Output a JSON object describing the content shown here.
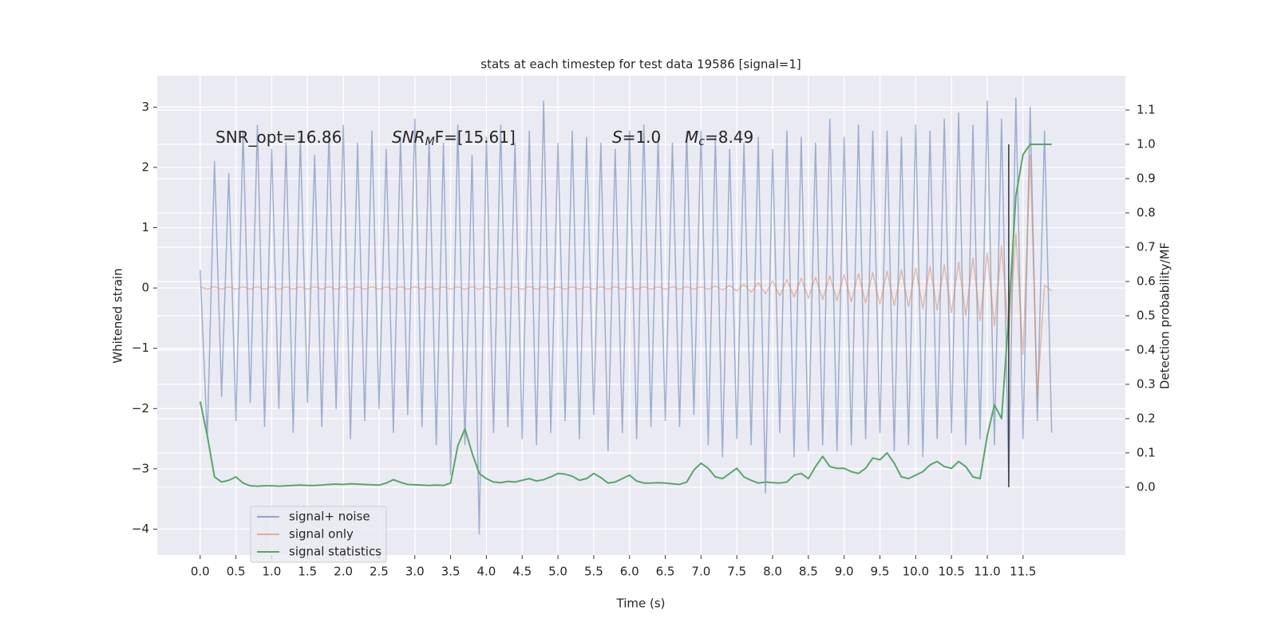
{
  "chart_data": {
    "type": "line",
    "title": "stats at each timestep for test data 19586 [signal=1]",
    "xlabel": "Time (s)",
    "ylabel": "Whitened strain",
    "y2label": "Detection probability/MF",
    "xlim": [
      -0.6,
      12.93
    ],
    "ylim": [
      -4.43,
      3.52
    ],
    "y2lim": [
      -0.198,
      1.2
    ],
    "xticks": [
      {
        "value": 0,
        "label": "0.0"
      },
      0.5,
      {
        "value": 1,
        "label": "1.0"
      },
      1.5,
      {
        "value": 2,
        "label": "2.0"
      },
      2.5,
      {
        "value": 3,
        "label": "3.0"
      },
      3.5,
      {
        "value": 4,
        "label": "4.0"
      },
      4.5,
      {
        "value": 5,
        "label": "5.0"
      },
      5.5,
      {
        "value": 6,
        "label": "6.0"
      },
      6.5,
      {
        "value": 7,
        "label": "7.0"
      },
      7.5,
      {
        "value": 8,
        "label": "8.0"
      },
      8.5,
      {
        "value": 9,
        "label": "9.0"
      },
      9.5,
      {
        "value": 10,
        "label": "10.0"
      },
      10.5,
      {
        "value": 11,
        "label": "11.0"
      },
      11.5
    ],
    "yticks": [
      {
        "value": -4,
        "label": "−4"
      },
      {
        "value": -3,
        "label": "−3"
      },
      {
        "value": -2,
        "label": "−2"
      },
      {
        "value": -1,
        "label": "−1"
      },
      0,
      1,
      2,
      3
    ],
    "y2ticks": [
      {
        "value": 0,
        "label": "0.0"
      },
      0.1,
      0.2,
      0.3,
      0.4,
      0.5,
      0.6,
      0.7,
      0.8,
      0.9,
      {
        "value": 1,
        "label": "1.0"
      },
      1.1
    ],
    "grid": true,
    "legend": "lower left",
    "annotations": [
      {
        "text": "SNR_opt=16.86"
      },
      {
        "italic": "SNR",
        "sub": "M",
        "text": "F=[15.61]"
      },
      {
        "italic": "S",
        "text": "=1.0"
      },
      {
        "italic": "M",
        "sub": "c",
        "text": "=8.49"
      }
    ],
    "vline": {
      "x": 11.3,
      "y2": [
        0,
        1
      ],
      "color": "#333333"
    },
    "x": [
      0,
      0.1,
      0.2,
      0.3,
      0.4,
      0.5,
      0.6,
      0.7,
      0.8,
      0.9,
      1,
      1.1,
      1.2,
      1.3,
      1.4,
      1.5,
      1.6,
      1.7,
      1.8,
      1.9,
      2,
      2.1,
      2.2,
      2.3,
      2.4,
      2.5,
      2.6,
      2.7,
      2.8,
      2.9,
      3,
      3.1,
      3.2,
      3.3,
      3.4,
      3.5,
      3.6,
      3.7,
      3.8,
      3.9,
      4,
      4.1,
      4.2,
      4.3,
      4.4,
      4.5,
      4.6,
      4.7,
      4.8,
      4.9,
      5,
      5.1,
      5.2,
      5.3,
      5.4,
      5.5,
      5.6,
      5.7,
      5.8,
      5.9,
      6,
      6.1,
      6.2,
      6.3,
      6.4,
      6.5,
      6.6,
      6.7,
      6.8,
      6.9,
      7,
      7.1,
      7.2,
      7.3,
      7.4,
      7.5,
      7.6,
      7.7,
      7.8,
      7.9,
      8,
      8.1,
      8.2,
      8.3,
      8.4,
      8.5,
      8.6,
      8.7,
      8.8,
      8.9,
      9,
      9.1,
      9.2,
      9.3,
      9.4,
      9.5,
      9.6,
      9.7,
      9.8,
      9.9,
      10,
      10.1,
      10.2,
      10.3,
      10.4,
      10.5,
      10.6,
      10.7,
      10.8,
      10.9,
      11,
      11.1,
      11.2,
      11.3,
      11.4,
      11.5,
      11.6,
      11.7,
      11.8,
      11.9
    ],
    "series": [
      {
        "name": "signal+ noise",
        "color": "#4c72b0",
        "values": [
          0.3,
          -2.5,
          2.1,
          -1.8,
          1.9,
          -2.2,
          2.6,
          -1.9,
          2.7,
          -2.3,
          2.3,
          -2.0,
          2.4,
          -2.4,
          2.5,
          -1.9,
          2.2,
          -2.3,
          2.6,
          -2.0,
          2.7,
          -2.5,
          2.4,
          -2.2,
          2.6,
          -2.0,
          2.3,
          -2.4,
          2.5,
          -2.1,
          2.8,
          -2.3,
          2.5,
          -2.6,
          2.4,
          -3.1,
          2.7,
          -2.6,
          2.2,
          -4.08,
          2.5,
          -2.4,
          2.7,
          -2.3,
          2.4,
          -2.5,
          2.6,
          -2.6,
          3.1,
          -2.4,
          2.4,
          -2.2,
          2.6,
          -2.5,
          2.5,
          -2.1,
          2.4,
          -2.7,
          2.3,
          -2.4,
          2.6,
          -2.5,
          2.7,
          -2.3,
          2.5,
          -2.2,
          2.4,
          -2.3,
          2.6,
          -2.1,
          2.6,
          -2.6,
          2.5,
          -2.8,
          2.3,
          -2.5,
          2.4,
          -2.6,
          2.5,
          -3.4,
          2.3,
          -2.4,
          2.6,
          -2.8,
          2.5,
          -2.7,
          2.4,
          -2.6,
          2.8,
          -2.7,
          2.5,
          -2.6,
          2.7,
          -2.5,
          2.6,
          -2.4,
          2.6,
          -2.7,
          2.5,
          -2.6,
          2.7,
          -2.8,
          2.6,
          -2.5,
          2.8,
          -2.4,
          2.9,
          -2.6,
          2.7,
          -2.5,
          3.1,
          -2.6,
          2.8,
          -3.2,
          3.15,
          -2.5,
          3.0,
          -2.2,
          2.6,
          -2.4
        ]
      },
      {
        "name": "signal only",
        "color": "#dd8452",
        "values": [
          0.02,
          -0.02,
          0.02,
          -0.02,
          0.02,
          -0.02,
          0.02,
          -0.02,
          0.02,
          -0.02,
          0.02,
          -0.02,
          0.02,
          -0.02,
          0.02,
          -0.02,
          0.02,
          -0.02,
          0.02,
          -0.02,
          0.02,
          -0.02,
          0.02,
          -0.02,
          0.02,
          -0.02,
          0.02,
          -0.02,
          0.02,
          -0.02,
          0.02,
          -0.02,
          0.02,
          -0.02,
          0.02,
          -0.02,
          0.02,
          -0.02,
          0.02,
          -0.02,
          0.02,
          -0.02,
          0.02,
          -0.02,
          0.02,
          -0.02,
          0.02,
          -0.02,
          0.02,
          -0.02,
          0.02,
          -0.02,
          0.02,
          -0.02,
          0.02,
          -0.02,
          0.02,
          -0.02,
          0.02,
          -0.02,
          0.02,
          -0.02,
          0.02,
          -0.02,
          0.02,
          -0.02,
          0.02,
          -0.02,
          0.02,
          -0.02,
          0.02,
          -0.02,
          0.03,
          -0.03,
          0.04,
          -0.05,
          0.06,
          -0.07,
          0.09,
          -0.1,
          0.12,
          -0.13,
          0.14,
          -0.15,
          0.16,
          -0.17,
          0.18,
          -0.19,
          0.2,
          -0.21,
          0.22,
          -0.23,
          0.24,
          -0.25,
          0.26,
          -0.27,
          0.28,
          -0.29,
          0.3,
          -0.31,
          0.33,
          -0.34,
          0.36,
          -0.37,
          0.39,
          -0.41,
          0.43,
          -0.46,
          0.5,
          -0.54,
          0.58,
          -0.63,
          0.7,
          -0.78,
          0.9,
          -1.1,
          2.2,
          -1.8,
          0.05,
          -0.05
        ]
      },
      {
        "name": "signal statistics",
        "color": "#55a868",
        "axis": "y2",
        "values": [
          0.25,
          0.15,
          0.03,
          0.015,
          0.02,
          0.03,
          0.012,
          0.004,
          0.003,
          0.004,
          0.004,
          0.003,
          0.004,
          0.005,
          0.006,
          0.005,
          0.005,
          0.006,
          0.008,
          0.009,
          0.008,
          0.01,
          0.009,
          0.008,
          0.007,
          0.006,
          0.012,
          0.022,
          0.014,
          0.008,
          0.007,
          0.006,
          0.005,
          0.006,
          0.005,
          0.012,
          0.12,
          0.17,
          0.1,
          0.04,
          0.025,
          0.015,
          0.013,
          0.017,
          0.015,
          0.02,
          0.025,
          0.018,
          0.022,
          0.03,
          0.04,
          0.038,
          0.032,
          0.02,
          0.025,
          0.04,
          0.028,
          0.012,
          0.015,
          0.025,
          0.035,
          0.018,
          0.012,
          0.012,
          0.013,
          0.012,
          0.01,
          0.008,
          0.015,
          0.05,
          0.07,
          0.055,
          0.03,
          0.025,
          0.04,
          0.055,
          0.03,
          0.02,
          0.012,
          0.015,
          0.013,
          0.012,
          0.015,
          0.035,
          0.04,
          0.025,
          0.06,
          0.09,
          0.06,
          0.055,
          0.055,
          0.045,
          0.04,
          0.055,
          0.085,
          0.08,
          0.1,
          0.07,
          0.03,
          0.025,
          0.035,
          0.045,
          0.065,
          0.075,
          0.06,
          0.055,
          0.075,
          0.06,
          0.03,
          0.025,
          0.15,
          0.24,
          0.2,
          0.5,
          0.85,
          0.97,
          1.0,
          1.0,
          1.0,
          1.0
        ]
      }
    ]
  }
}
